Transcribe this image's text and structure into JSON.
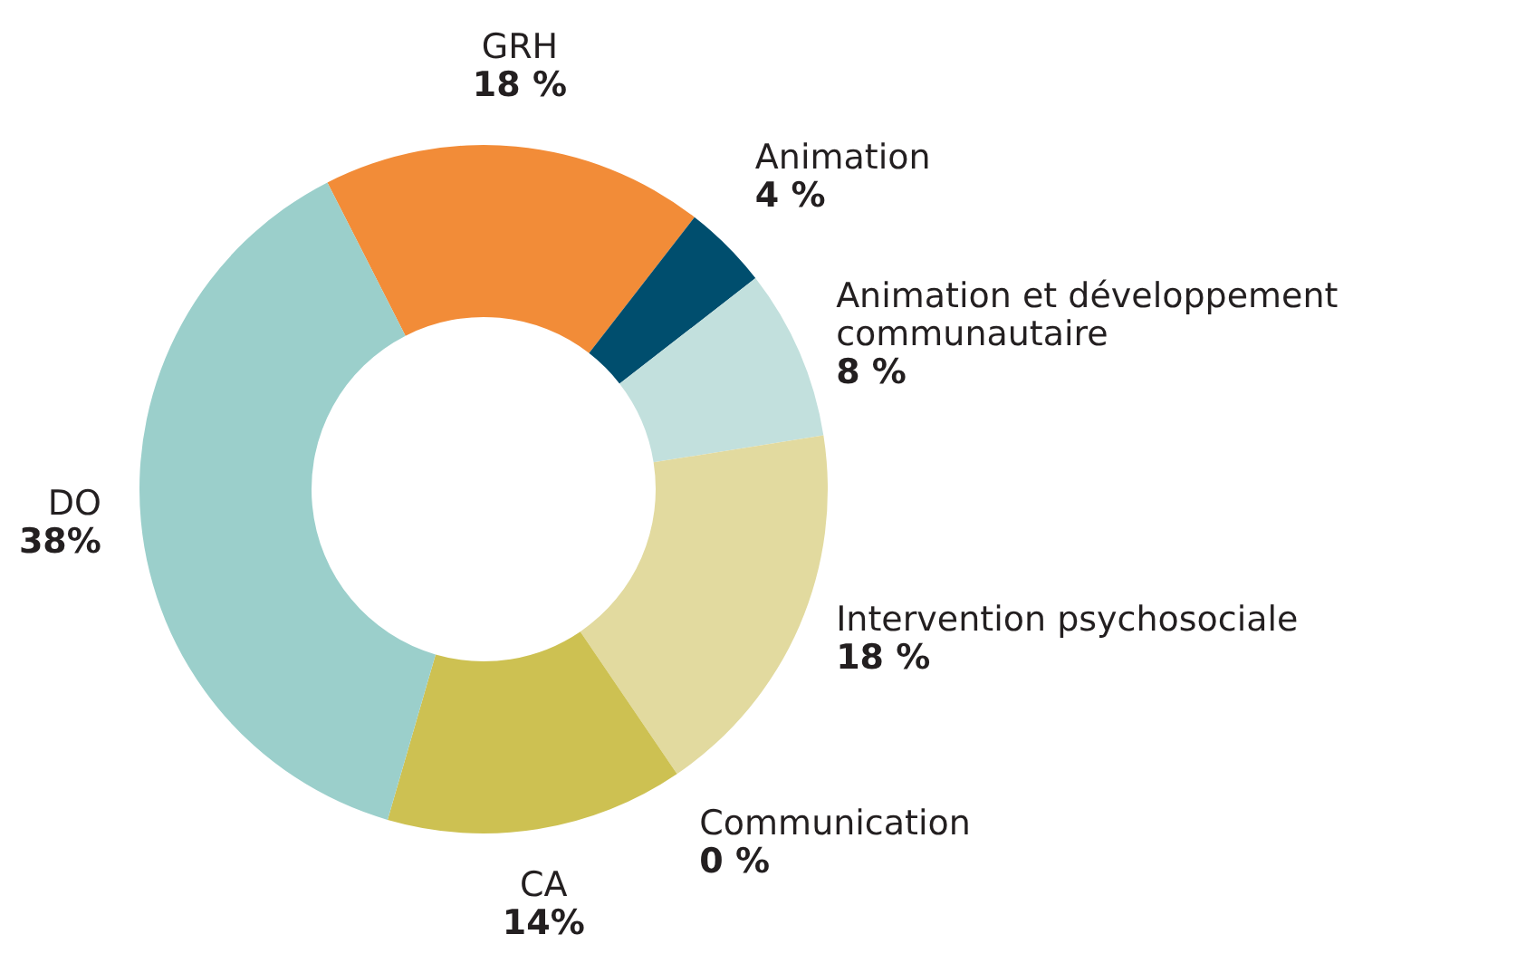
{
  "chart_data": {
    "type": "donut",
    "categories": [
      "GRH",
      "Animation",
      "Animation et développement communautaire",
      "Intervention psychosociale",
      "Communication",
      "CA",
      "DO"
    ],
    "values": [
      18,
      4,
      8,
      18,
      0,
      14,
      38
    ],
    "value_labels": [
      "18 %",
      "4 %",
      "8 %",
      "18 %",
      "0 %",
      "14%",
      "38%"
    ],
    "colors": [
      "#f28c38",
      "#004e6e",
      "#c2e0dd",
      "#e2da9f",
      null,
      "#cdc152",
      "#9bcfcb"
    ]
  }
}
